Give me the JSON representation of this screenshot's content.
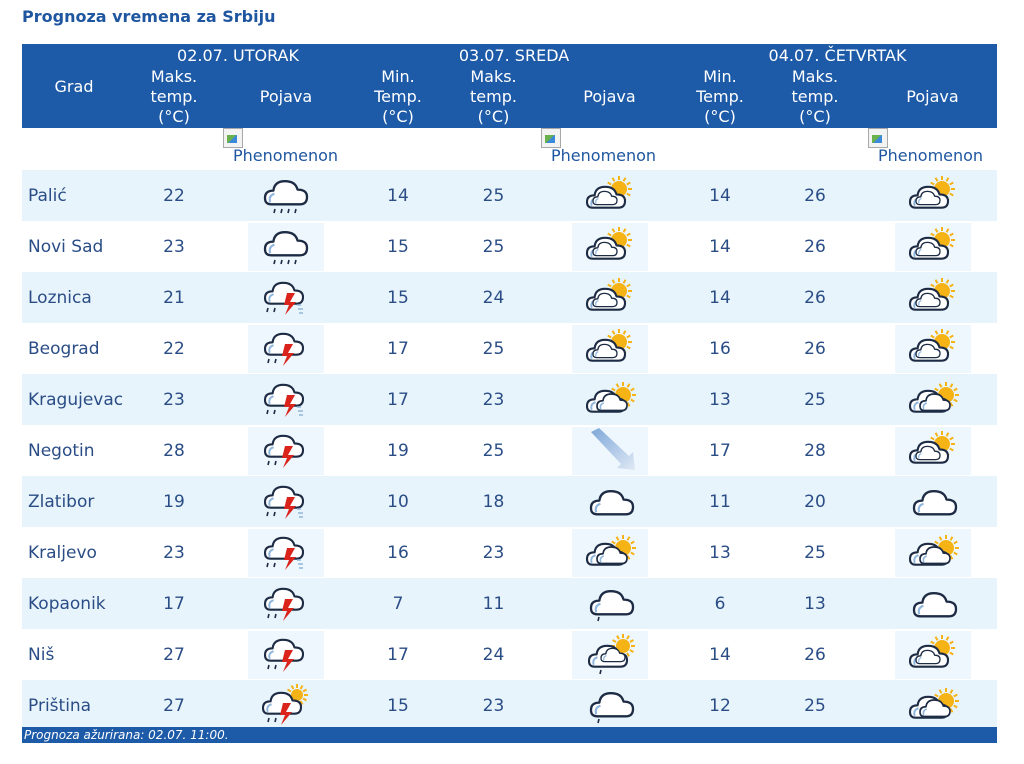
{
  "page_title": "Prognoza vremena za Srbiju",
  "days": [
    {
      "label": "02.07. UTORAK"
    },
    {
      "label": "03.07. SREDA"
    },
    {
      "label": "04.07. ČETVRTAK"
    }
  ],
  "columns": {
    "grad": "Grad",
    "maks": "Maks. temp. (°C)",
    "min": "Min. Temp. (°C)",
    "pojava": "Pojava"
  },
  "phenomenon_alt": "Phenomenon",
  "rows": [
    {
      "city": "Palić",
      "d1_max": "22",
      "d1_icon": "rain-cloud-icon",
      "d2_min": "14",
      "d2_max": "25",
      "d2_icon": "partly-sunny-icon",
      "d3_min": "14",
      "d3_max": "26",
      "d3_icon": "partly-sunny-icon"
    },
    {
      "city": "Novi Sad",
      "d1_max": "23",
      "d1_icon": "rain-cloud-icon",
      "d2_min": "15",
      "d2_max": "25",
      "d2_icon": "partly-sunny-icon",
      "d3_min": "14",
      "d3_max": "26",
      "d3_icon": "partly-sunny-icon"
    },
    {
      "city": "Loznica",
      "d1_max": "21",
      "d1_icon": "thunderstorm-rain-icon",
      "d2_min": "15",
      "d2_max": "24",
      "d2_icon": "partly-sunny-icon",
      "d3_min": "14",
      "d3_max": "26",
      "d3_icon": "partly-sunny-icon"
    },
    {
      "city": "Beograd",
      "d1_max": "22",
      "d1_icon": "thunderstorm-icon",
      "d2_min": "17",
      "d2_max": "25",
      "d2_icon": "partly-sunny-icon",
      "d3_min": "16",
      "d3_max": "26",
      "d3_icon": "partly-sunny-icon"
    },
    {
      "city": "Kragujevac",
      "d1_max": "23",
      "d1_icon": "thunderstorm-rain-icon",
      "d2_min": "17",
      "d2_max": "23",
      "d2_icon": "cloudy-sun-icon",
      "d3_min": "13",
      "d3_max": "25",
      "d3_icon": "cloudy-sun-icon"
    },
    {
      "city": "Negotin",
      "d1_max": "28",
      "d1_icon": "thunderstorm-icon",
      "d2_min": "19",
      "d2_max": "25",
      "d2_icon": "wind-arrow-icon",
      "d3_min": "17",
      "d3_max": "28",
      "d3_icon": "partly-sunny-icon"
    },
    {
      "city": "Zlatibor",
      "d1_max": "19",
      "d1_icon": "thunderstorm-rain-icon",
      "d2_min": "10",
      "d2_max": "18",
      "d2_icon": "cloud-icon",
      "d3_min": "11",
      "d3_max": "20",
      "d3_icon": "cloud-icon"
    },
    {
      "city": "Kraljevo",
      "d1_max": "23",
      "d1_icon": "thunderstorm-rain-icon",
      "d2_min": "16",
      "d2_max": "23",
      "d2_icon": "cloudy-sun-icon",
      "d3_min": "13",
      "d3_max": "25",
      "d3_icon": "cloudy-sun-icon"
    },
    {
      "city": "Kopaonik",
      "d1_max": "17",
      "d1_icon": "thunderstorm-icon",
      "d2_min": "7",
      "d2_max": "11",
      "d2_icon": "cloud-drizzle-icon",
      "d3_min": "6",
      "d3_max": "13",
      "d3_icon": "cloud-icon"
    },
    {
      "city": "Niš",
      "d1_max": "27",
      "d1_icon": "thunderstorm-icon",
      "d2_min": "17",
      "d2_max": "24",
      "d2_icon": "sun-shower-icon",
      "d3_min": "14",
      "d3_max": "26",
      "d3_icon": "partly-sunny-icon"
    },
    {
      "city": "Priština",
      "d1_max": "27",
      "d1_icon": "sun-thunderstorm-icon",
      "d2_min": "15",
      "d2_max": "23",
      "d2_icon": "cloud-drizzle-icon",
      "d3_min": "12",
      "d3_max": "25",
      "d3_icon": "cloudy-sun-icon"
    }
  ],
  "footer": "Prognoza ažurirana:  02.07. 11:00.",
  "colors": {
    "header_bg": "#1d5aa8",
    "row_alt_bg": "#e8f4fb",
    "text": "#2a4d86",
    "sun": "#f5b316",
    "lightning": "#d9231b"
  }
}
